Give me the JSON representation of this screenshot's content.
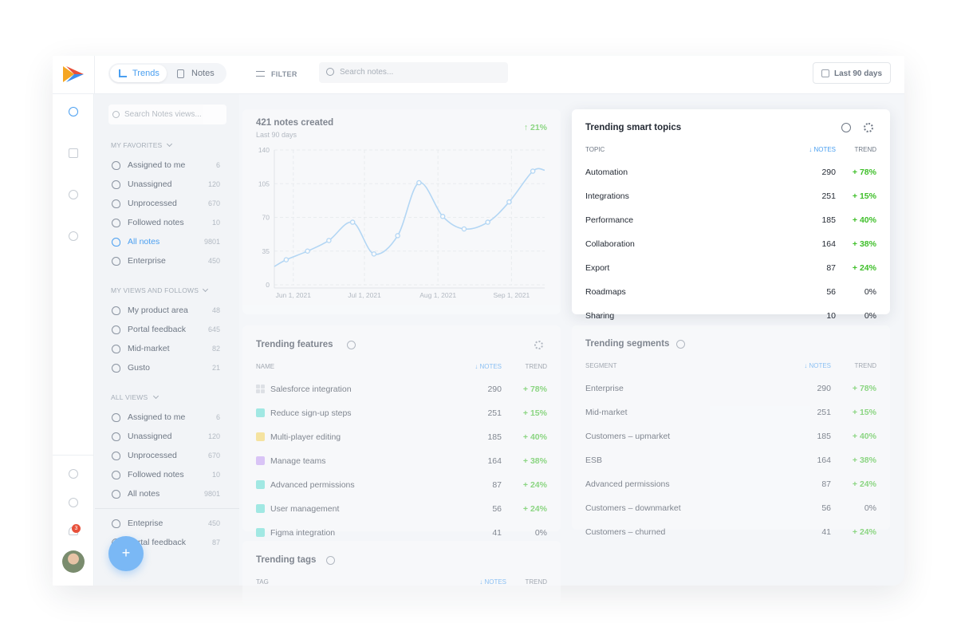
{
  "header": {
    "tabs": [
      "Trends",
      "Notes"
    ],
    "filter": "FILTER",
    "search_placeholder": "Search notes...",
    "date_range": "Last 90 days"
  },
  "rail": {
    "notification_count": 3
  },
  "sidebar": {
    "search_placeholder": "Search Notes views...",
    "sections": [
      {
        "title": "MY FAVORITES",
        "active_index": 4,
        "items": [
          {
            "label": "Assigned to me",
            "count": 6
          },
          {
            "label": "Unassigned",
            "count": 120
          },
          {
            "label": "Unprocessed",
            "count": 670
          },
          {
            "label": "Followed notes",
            "count": 10
          },
          {
            "label": "All notes",
            "count": 9801
          },
          {
            "label": "Enterprise",
            "count": 450
          }
        ]
      },
      {
        "title": "MY VIEWS AND FOLLOWS",
        "items": [
          {
            "label": "My product area",
            "count": 48
          },
          {
            "label": "Portal feedback",
            "count": 645
          },
          {
            "label": "Mid-market",
            "count": 82
          },
          {
            "label": "Gusto",
            "count": 21
          }
        ]
      },
      {
        "title": "ALL VIEWS",
        "items": [
          {
            "label": "Assigned to me",
            "count": 6
          },
          {
            "label": "Unassigned",
            "count": 120
          },
          {
            "label": "Unprocessed",
            "count": 670
          },
          {
            "label": "Followed notes",
            "count": 10
          },
          {
            "label": "All notes",
            "count": 9801
          },
          {
            "label": "Enteprise",
            "count": 450
          },
          {
            "label": "Portal feedback",
            "count": 87
          }
        ]
      }
    ]
  },
  "fab": "+",
  "notes_card": {
    "title": "421 notes created",
    "subtitle": "Last 90 days",
    "change": "↑ 21%",
    "chart": {
      "type": "line",
      "color": "#8cc4f2",
      "grid": true,
      "x": [
        "2021-05-24",
        "2021-05-29",
        "2021-06-07",
        "2021-06-16",
        "2021-06-26",
        "2021-07-05",
        "2021-07-15",
        "2021-07-24",
        "2021-08-03",
        "2021-08-12",
        "2021-08-22",
        "2021-08-31",
        "2021-09-10",
        "2021-09-15"
      ],
      "values": [
        19,
        26,
        35,
        46,
        65,
        32,
        51,
        106,
        71,
        58,
        65,
        86,
        118,
        119
      ],
      "xlim": [
        "2021-05-24",
        "2021-09-15"
      ],
      "xticks": [
        {
          "value": "2021-06-01",
          "label": "Jun 1, 2021"
        },
        {
          "value": "2021-07-01",
          "label": "Jul 1, 2021"
        },
        {
          "value": "2021-08-01",
          "label": "Aug 1, 2021"
        },
        {
          "value": "2021-09-01",
          "label": "Sep 1, 2021"
        }
      ],
      "ylim": [
        0,
        140
      ],
      "yticks": [
        0,
        35,
        70,
        105,
        140
      ]
    }
  },
  "topics": {
    "title": "Trending smart topics",
    "columns": [
      "TOPIC",
      "↓ NOTES",
      "TREND"
    ],
    "rows": [
      [
        "Automation",
        290,
        "+ 78%"
      ],
      [
        "Integrations",
        251,
        "+ 15%"
      ],
      [
        "Performance",
        185,
        "+ 40%"
      ],
      [
        "Collaboration",
        164,
        "+ 38%"
      ],
      [
        "Export",
        87,
        "+ 24%"
      ],
      [
        "Roadmaps",
        56,
        "0%"
      ],
      [
        "Sharing",
        10,
        "0%"
      ]
    ]
  },
  "features": {
    "title": "Trending features",
    "columns": [
      "NAME",
      "↓ NOTES",
      "TREND"
    ],
    "row_colors": [
      "#cfd4da",
      "#6fe0d6",
      "#f7d96b",
      "#c9a6f5",
      "#6fe0d6",
      "#6fe0d6",
      "#6fe0d6"
    ],
    "rows": [
      [
        "Salesforce integration",
        290,
        "+ 78%"
      ],
      [
        "Reduce sign-up steps",
        251,
        "+ 15%"
      ],
      [
        "Multi-player editing",
        185,
        "+ 40%"
      ],
      [
        "Manage teams",
        164,
        "+ 38%"
      ],
      [
        "Advanced permissions",
        87,
        "+ 24%"
      ],
      [
        "User management",
        56,
        "+ 24%"
      ],
      [
        "Figma integration",
        41,
        "0%"
      ]
    ]
  },
  "segments": {
    "title": "Trending segments",
    "columns": [
      "SEGMENT",
      "↓ NOTES",
      "TREND"
    ],
    "rows": [
      [
        "Enterprise",
        290,
        "+ 78%"
      ],
      [
        "Mid-market",
        251,
        "+ 15%"
      ],
      [
        "Customers – upmarket",
        185,
        "+ 40%"
      ],
      [
        "ESB",
        164,
        "+ 38%"
      ],
      [
        "Advanced permissions",
        87,
        "+ 24%"
      ],
      [
        "Customers – downmarket",
        56,
        "0%"
      ],
      [
        "Customers – churned",
        41,
        "+ 24%"
      ]
    ]
  },
  "tags": {
    "title": "Trending tags",
    "columns": [
      "TAG",
      "↓ NOTES",
      "TREND"
    ],
    "rows": []
  }
}
